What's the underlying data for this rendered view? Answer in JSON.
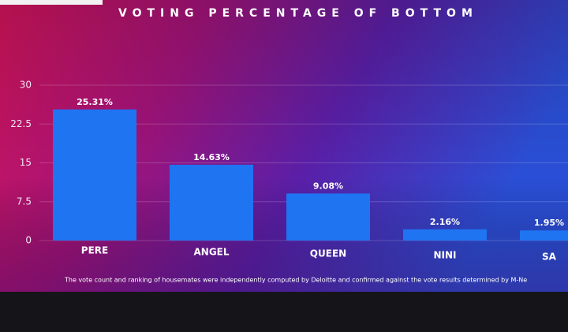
{
  "chart_data": {
    "type": "bar",
    "title": "VOTING PERCENTAGE OF BOTTOM",
    "categories": [
      "PERE",
      "ANGEL",
      "QUEEN",
      "NINI",
      "SA"
    ],
    "values": [
      25.31,
      14.63,
      9.08,
      2.16,
      1.95
    ],
    "value_labels": [
      "25.31%",
      "14.63%",
      "9.08%",
      "2.16%",
      "1.95%"
    ],
    "color": "#1f74f2",
    "ylim": [
      0,
      30
    ],
    "yticks": [
      0,
      7.5,
      15,
      22.5,
      30
    ],
    "grid": true,
    "footnote": "The vote count and ranking of housemates were independently computed by Deloitte and confirmed against the vote results determined by M-Ne"
  }
}
